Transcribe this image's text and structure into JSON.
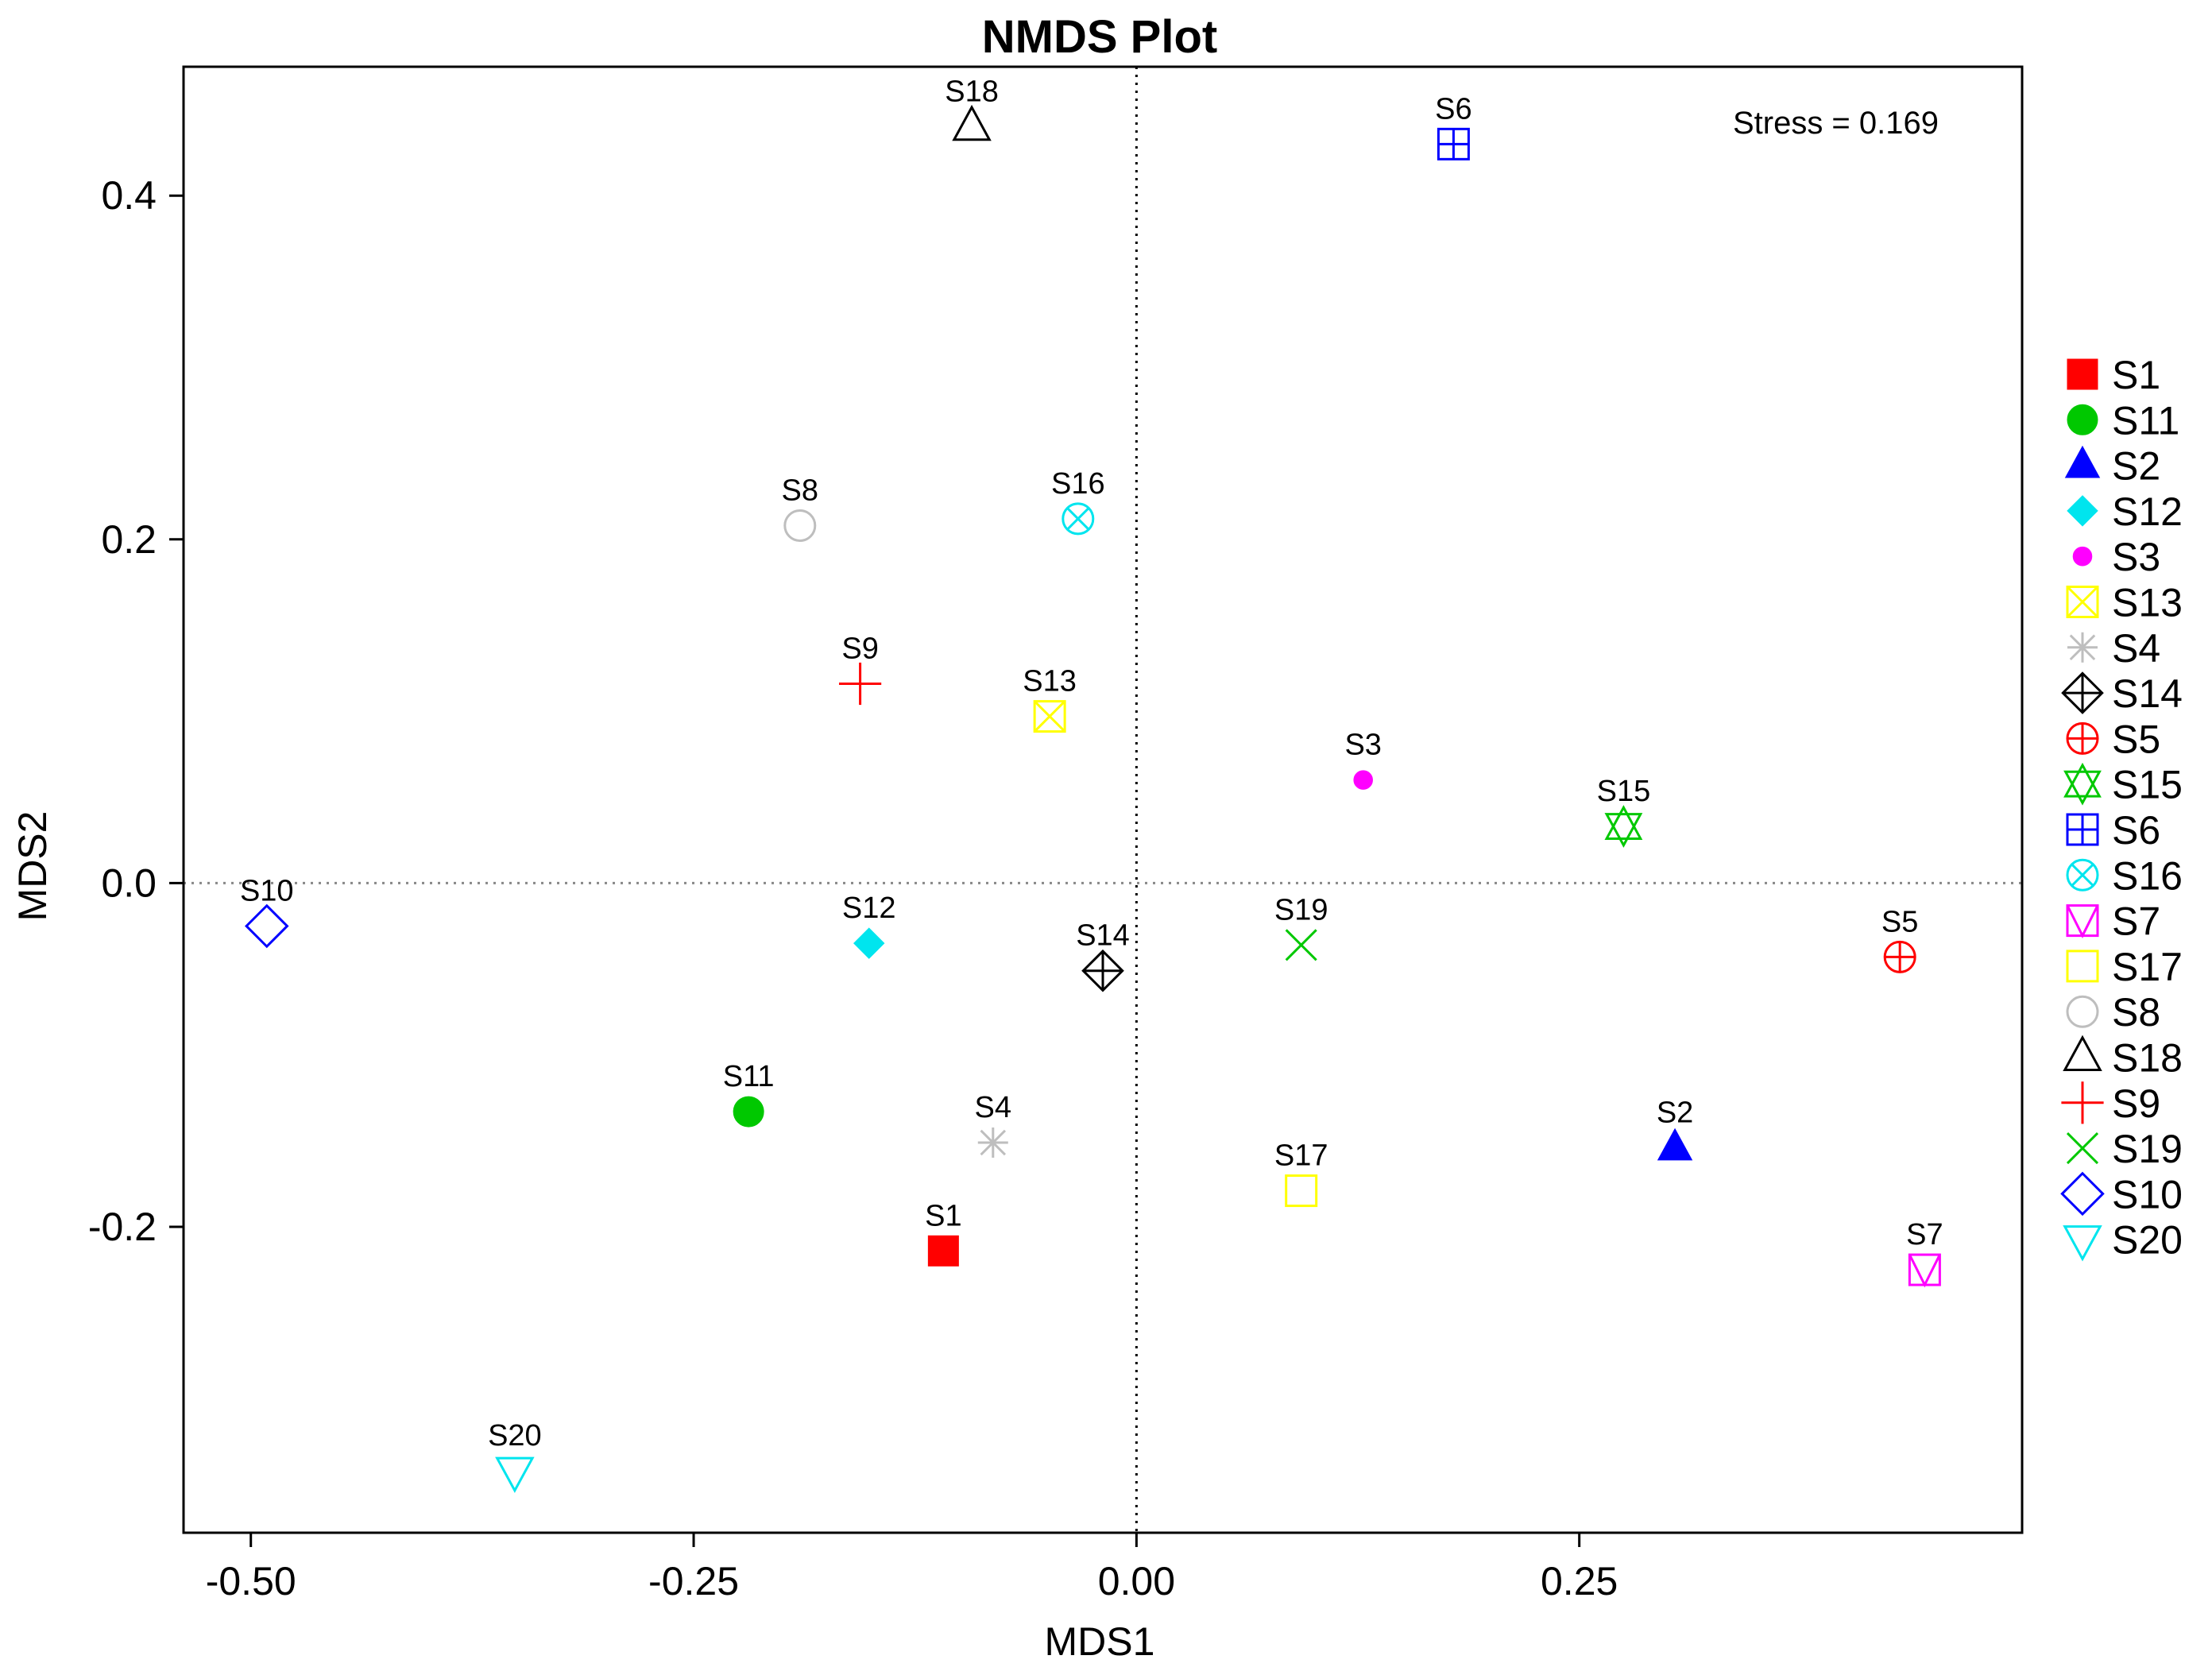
{
  "chart_data": {
    "type": "scatter",
    "title": "NMDS Plot",
    "xlabel": "MDS1",
    "ylabel": "MDS2",
    "xlim": [
      -0.538,
      0.5
    ],
    "ylim": [
      -0.378,
      0.475
    ],
    "x_ticks": [
      -0.5,
      -0.25,
      0.0,
      0.25
    ],
    "x_tick_labels": [
      "-0.50",
      "-0.25",
      "0.00",
      "0.25"
    ],
    "y_ticks": [
      -0.2,
      0.0,
      0.2,
      0.4
    ],
    "y_tick_labels": [
      "-0.2",
      "0.0",
      "0.2",
      "0.4"
    ],
    "reference_lines": {
      "x": 0,
      "y": 0,
      "style": "dotted"
    },
    "annotation": "Stress = 0.169",
    "legend_position": "right",
    "points": [
      {
        "label": "S1",
        "x": -0.109,
        "y": -0.214,
        "shape": "square-filled",
        "color": "#ff0000"
      },
      {
        "label": "S11",
        "x": -0.219,
        "y": -0.133,
        "shape": "circle-filled",
        "color": "#00c800"
      },
      {
        "label": "S2",
        "x": 0.304,
        "y": -0.154,
        "shape": "triangle-filled",
        "color": "#0000ff"
      },
      {
        "label": "S12",
        "x": -0.151,
        "y": -0.035,
        "shape": "diamond-filled",
        "color": "#00e5ee"
      },
      {
        "label": "S3",
        "x": 0.128,
        "y": 0.06,
        "shape": "dot-filled",
        "color": "#ff00ff"
      },
      {
        "label": "S13",
        "x": -0.049,
        "y": 0.097,
        "shape": "square-x",
        "color": "#ffff00"
      },
      {
        "label": "S4",
        "x": -0.081,
        "y": -0.151,
        "shape": "asterisk",
        "color": "#bebebe"
      },
      {
        "label": "S14",
        "x": -0.019,
        "y": -0.051,
        "shape": "diamond-plus",
        "color": "#000000"
      },
      {
        "label": "S5",
        "x": 0.431,
        "y": -0.043,
        "shape": "circle-plus",
        "color": "#ff0000"
      },
      {
        "label": "S15",
        "x": 0.275,
        "y": 0.033,
        "shape": "star-of-david",
        "color": "#00c800"
      },
      {
        "label": "S6",
        "x": 0.179,
        "y": 0.43,
        "shape": "square-plus",
        "color": "#0000ff"
      },
      {
        "label": "S16",
        "x": -0.033,
        "y": 0.212,
        "shape": "circle-x",
        "color": "#00e5ee"
      },
      {
        "label": "S7",
        "x": 0.445,
        "y": -0.225,
        "shape": "square-triangle",
        "color": "#ff00ff"
      },
      {
        "label": "S17",
        "x": 0.093,
        "y": -0.179,
        "shape": "square",
        "color": "#ffff00"
      },
      {
        "label": "S8",
        "x": -0.19,
        "y": 0.208,
        "shape": "circle",
        "color": "#bebebe"
      },
      {
        "label": "S18",
        "x": -0.093,
        "y": 0.44,
        "shape": "triangle",
        "color": "#000000"
      },
      {
        "label": "S9",
        "x": -0.156,
        "y": 0.116,
        "shape": "plus",
        "color": "#ff0000"
      },
      {
        "label": "S19",
        "x": 0.093,
        "y": -0.036,
        "shape": "cross",
        "color": "#00c800"
      },
      {
        "label": "S10",
        "x": -0.491,
        "y": -0.025,
        "shape": "diamond",
        "color": "#0000ff"
      },
      {
        "label": "S20",
        "x": -0.351,
        "y": -0.342,
        "shape": "triangle-down",
        "color": "#00e5ee"
      }
    ]
  }
}
